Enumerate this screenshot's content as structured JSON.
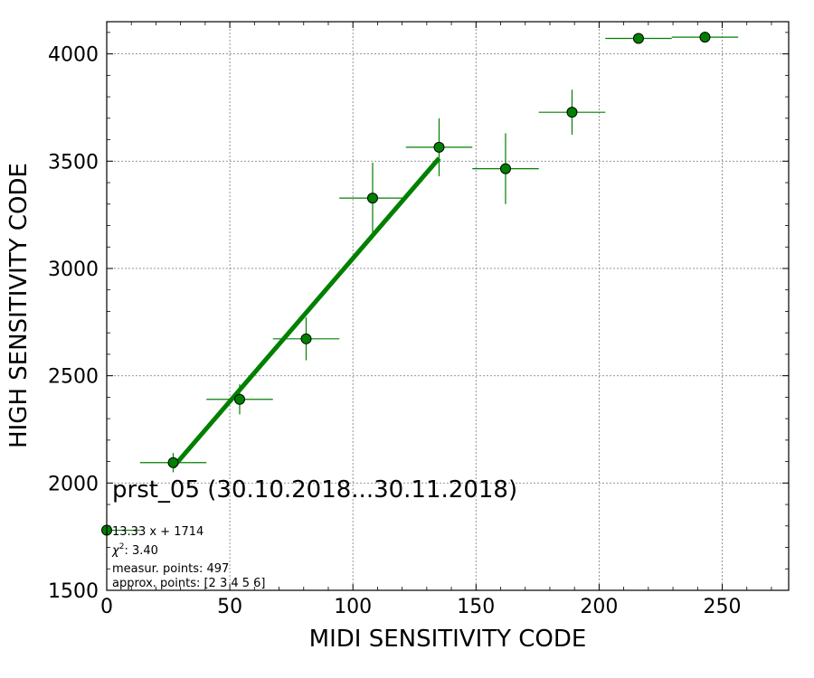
{
  "chart_data": {
    "type": "scatter",
    "title": "prst_05 (30.10.2018...30.11.2018)",
    "xlabel": "MIDI SENSITIVITY CODE",
    "ylabel": "HIGH SENSITIVITY CODE",
    "xlim": [
      0,
      277
    ],
    "ylim": [
      1500,
      4150
    ],
    "xticks": [
      0,
      50,
      100,
      150,
      200,
      250
    ],
    "yticks": [
      1500,
      2000,
      2500,
      3000,
      3500,
      4000
    ],
    "grid": true,
    "marker_color": "#008000",
    "line_color": "#008000",
    "points": [
      {
        "x": 0,
        "y": 1780,
        "xerr": 13.5,
        "yerr": 0
      },
      {
        "x": 27,
        "y": 2095,
        "xerr": 13.5,
        "yerr": 45
      },
      {
        "x": 54,
        "y": 2390,
        "xerr": 13.5,
        "yerr": 70
      },
      {
        "x": 81,
        "y": 2672,
        "xerr": 13.5,
        "yerr": 100
      },
      {
        "x": 108,
        "y": 3328,
        "xerr": 13.5,
        "yerr": 165
      },
      {
        "x": 135,
        "y": 3565,
        "xerr": 13.5,
        "yerr": 135
      },
      {
        "x": 162,
        "y": 3465,
        "xerr": 13.5,
        "yerr": 165
      },
      {
        "x": 189,
        "y": 3728,
        "xerr": 13.5,
        "yerr": 105
      },
      {
        "x": 216,
        "y": 4072,
        "xerr": 13.5,
        "yerr": 0
      },
      {
        "x": 243,
        "y": 4078,
        "xerr": 13.5,
        "yerr": 0
      }
    ],
    "fit": {
      "slope": 13.33,
      "intercept": 1714,
      "x_range": [
        27,
        135
      ]
    },
    "annotations": {
      "equation": "13.33 x + 1714",
      "chi2_label": "χ",
      "chi2_sup": "2",
      "chi2_value": ": 3.40",
      "measured": "measur. points: 497",
      "approx": "approx. points: [2 3 4 5 6]"
    }
  }
}
